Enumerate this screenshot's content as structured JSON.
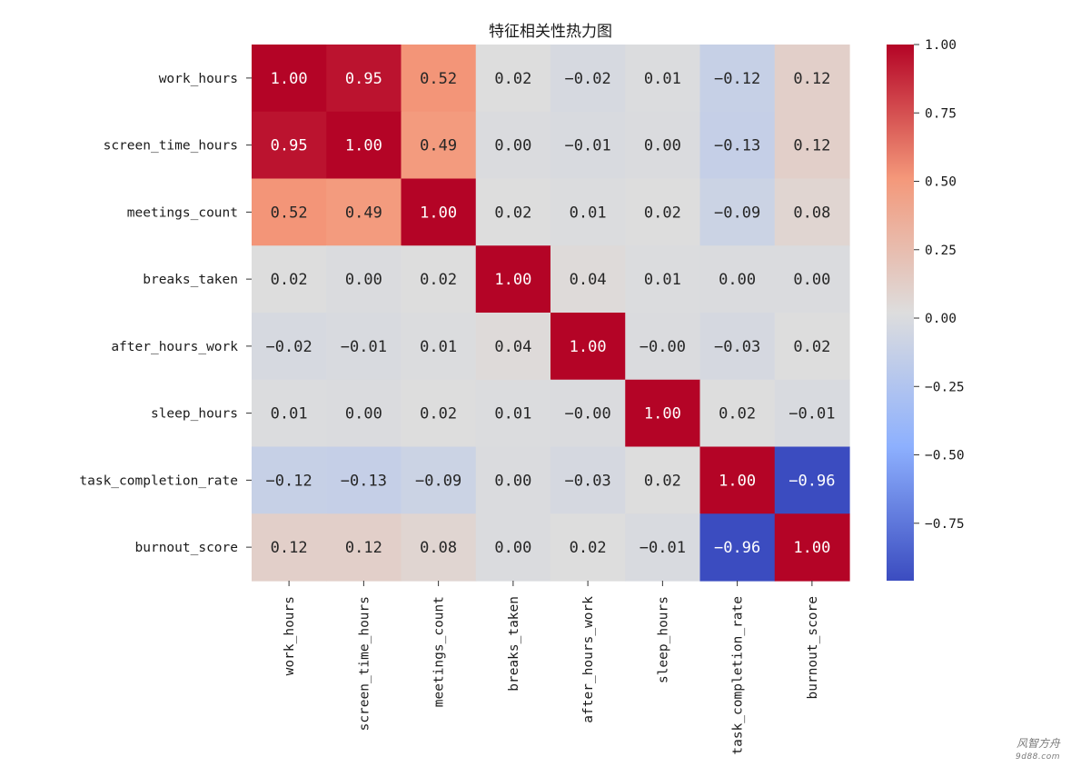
{
  "chart_data": {
    "type": "heatmap",
    "title": "特征相关性热力图",
    "row_labels": [
      "work_hours",
      "screen_time_hours",
      "meetings_count",
      "breaks_taken",
      "after_hours_work",
      "sleep_hours",
      "task_completion_rate",
      "burnout_score"
    ],
    "col_labels": [
      "work_hours",
      "screen_time_hours",
      "meetings_count",
      "breaks_taken",
      "after_hours_work",
      "sleep_hours",
      "task_completion_rate",
      "burnout_score"
    ],
    "values": [
      [
        1.0,
        0.95,
        0.52,
        0.02,
        -0.02,
        0.01,
        -0.12,
        0.12
      ],
      [
        0.95,
        1.0,
        0.49,
        0.0,
        -0.01,
        0.0,
        -0.13,
        0.12
      ],
      [
        0.52,
        0.49,
        1.0,
        0.02,
        0.01,
        0.02,
        -0.09,
        0.08
      ],
      [
        0.02,
        0.0,
        0.02,
        1.0,
        0.04,
        0.01,
        0.0,
        0.0
      ],
      [
        -0.02,
        -0.01,
        0.01,
        0.04,
        1.0,
        -0.0,
        -0.03,
        0.02
      ],
      [
        0.01,
        0.0,
        0.02,
        0.01,
        -0.0,
        1.0,
        0.02,
        -0.01
      ],
      [
        -0.12,
        -0.13,
        -0.09,
        0.0,
        -0.03,
        0.02,
        1.0,
        -0.96
      ],
      [
        0.12,
        0.12,
        0.08,
        0.0,
        0.02,
        -0.01,
        -0.96,
        1.0
      ]
    ],
    "cell_labels": [
      [
        "1.00",
        "0.95",
        "0.52",
        "0.02",
        "−0.02",
        "0.01",
        "−0.12",
        "0.12"
      ],
      [
        "0.95",
        "1.00",
        "0.49",
        "0.00",
        "−0.01",
        "0.00",
        "−0.13",
        "0.12"
      ],
      [
        "0.52",
        "0.49",
        "1.00",
        "0.02",
        "0.01",
        "0.02",
        "−0.09",
        "0.08"
      ],
      [
        "0.02",
        "0.00",
        "0.02",
        "1.00",
        "0.04",
        "0.01",
        "0.00",
        "0.00"
      ],
      [
        "−0.02",
        "−0.01",
        "0.01",
        "0.04",
        "1.00",
        "−0.00",
        "−0.03",
        "0.02"
      ],
      [
        "0.01",
        "0.00",
        "0.02",
        "0.01",
        "−0.00",
        "1.00",
        "0.02",
        "−0.01"
      ],
      [
        "−0.12",
        "−0.13",
        "−0.09",
        "0.00",
        "−0.03",
        "0.02",
        "1.00",
        "−0.96"
      ],
      [
        "0.12",
        "0.12",
        "0.08",
        "0.00",
        "0.02",
        "−0.01",
        "−0.96",
        "1.00"
      ]
    ],
    "colormap": "coolwarm",
    "value_range": [
      -0.96,
      1.0
    ],
    "colorbar": {
      "ticks": [
        1.0,
        0.75,
        0.5,
        0.25,
        0.0,
        -0.25,
        -0.5,
        -0.75
      ],
      "tick_labels": [
        "1.00",
        "0.75",
        "0.50",
        "0.25",
        "0.00",
        "−0.25",
        "−0.50",
        "−0.75"
      ]
    }
  },
  "watermark": {
    "main": "风智方舟",
    "sub": "9d88.com"
  }
}
